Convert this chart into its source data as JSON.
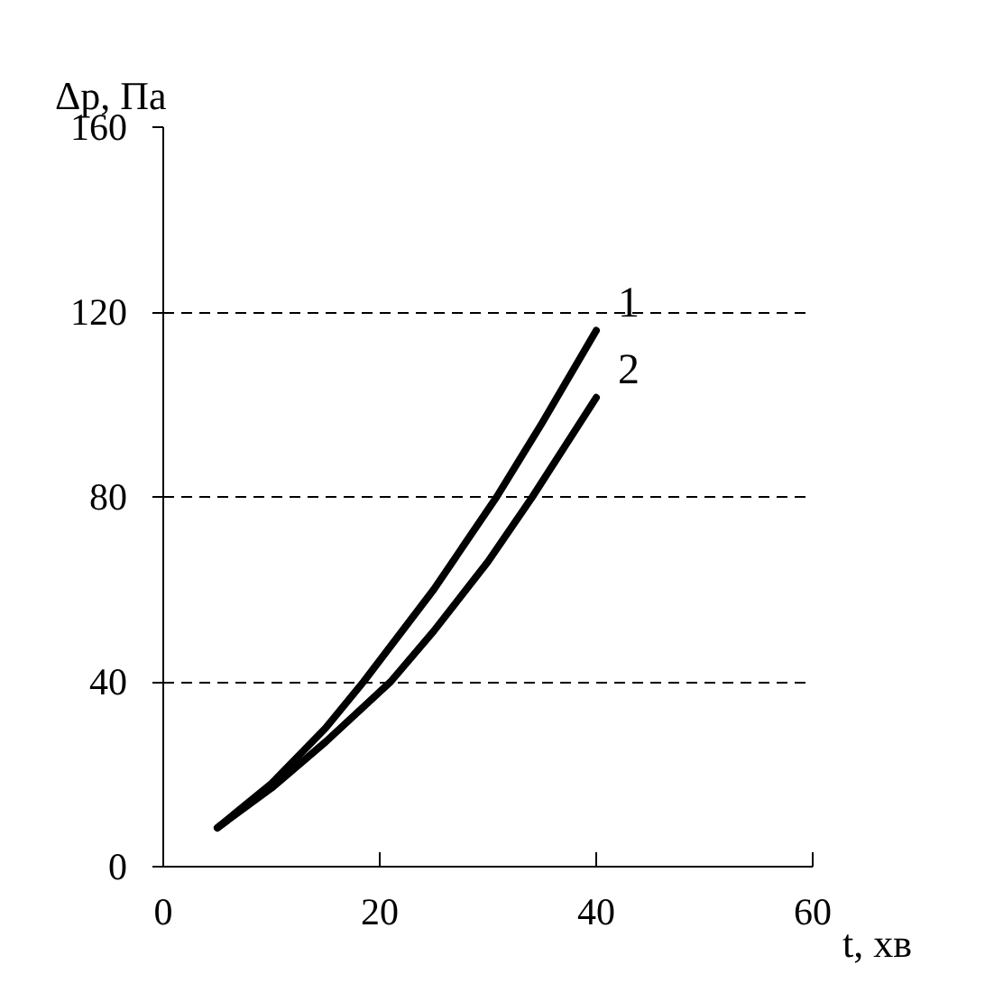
{
  "chart_data": {
    "type": "line",
    "xlabel": "t, хв",
    "ylabel": "Δp, Па",
    "xlim": [
      0,
      60
    ],
    "ylim": [
      0,
      160
    ],
    "xticks": [
      0,
      20,
      40,
      60
    ],
    "yticks": [
      0,
      40,
      80,
      120,
      160
    ],
    "grid": "y",
    "legend": false,
    "line_style": "solid",
    "marker": "none",
    "series": [
      {
        "name": "1",
        "color": "#000000",
        "x": [
          5,
          10,
          15,
          18.5,
          25,
          30.8,
          35,
          40
        ],
        "values": [
          8.4,
          18,
          30,
          40,
          60,
          80,
          96,
          116
        ]
      },
      {
        "name": "2",
        "color": "#000000",
        "x": [
          5,
          10,
          15,
          21,
          25,
          30,
          34.1,
          40
        ],
        "values": [
          8.4,
          17,
          27,
          40,
          51,
          66,
          80,
          101.5
        ]
      }
    ]
  }
}
